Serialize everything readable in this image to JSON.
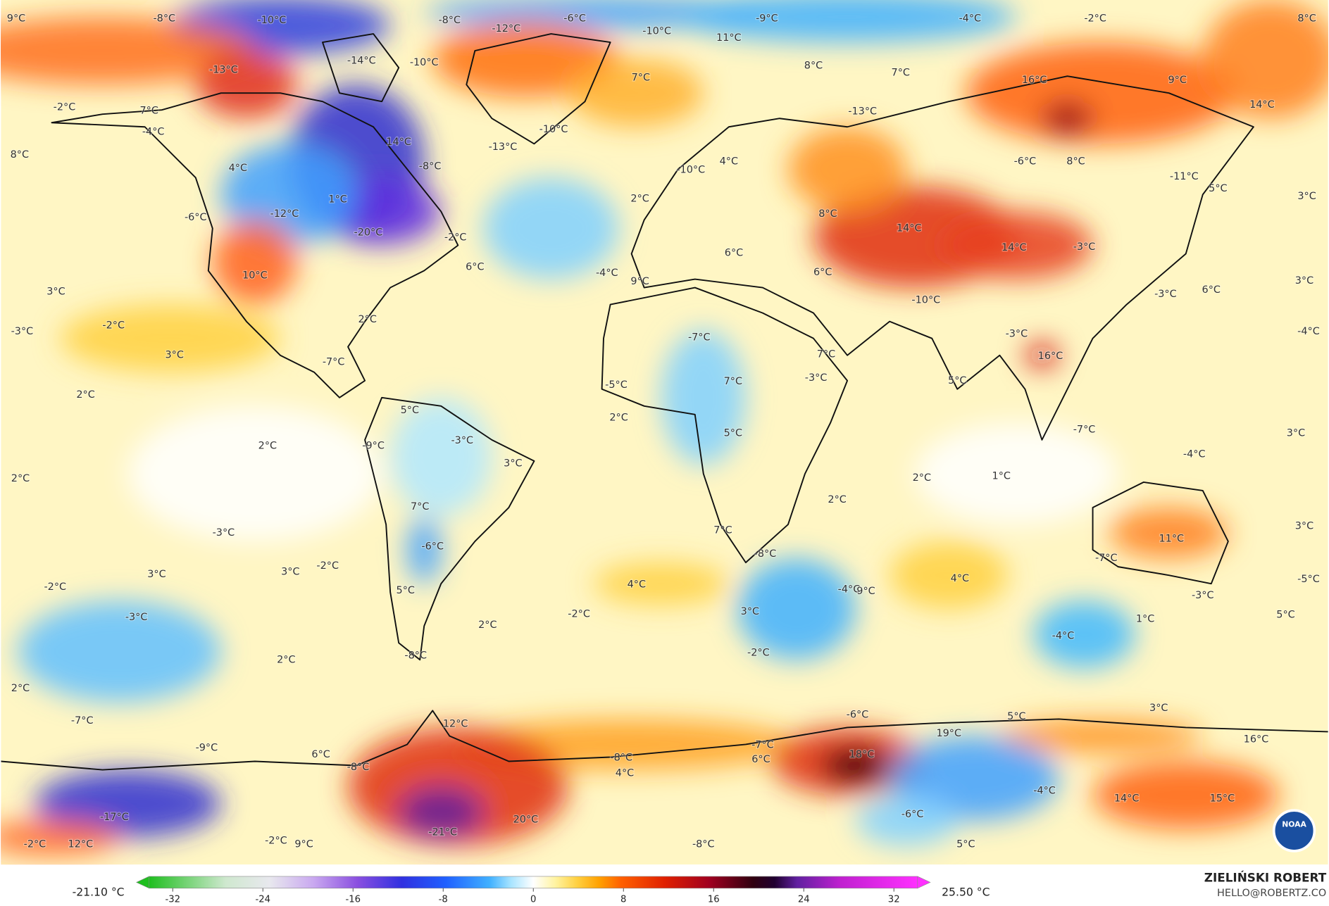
{
  "map": {
    "labels": [
      "9°C",
      "-8°C",
      "-10°C",
      "-8°C",
      "-6°C",
      "-10°C",
      "-9°C",
      "-4°C",
      "-2°C",
      "8°C",
      "-12°C",
      "11°C",
      "-14°C",
      "-10°C",
      "-13°C",
      "8°C",
      "7°C",
      "7°C",
      "16°C",
      "9°C",
      "14°C",
      "-2°C",
      "7°C",
      "-13°C",
      "-4°C",
      "-10°C",
      "14°C",
      "-13°C",
      "8°C",
      "4°C",
      "-6°C",
      "8°C",
      "4°C",
      "-8°C",
      "-10°C",
      "-11°C",
      "5°C",
      "3°C",
      "2°C",
      "1°C",
      "-6°C",
      "-12°C",
      "8°C",
      "-20°C",
      "-2°C",
      "14°C",
      "14°C",
      "-3°C",
      "6°C",
      "6°C",
      "10°C",
      "-4°C",
      "9°C",
      "6°C",
      "3°C",
      "6°C",
      "-10°C",
      "3°C",
      "-3°C",
      "2°C",
      "-3°C",
      "-2°C",
      "-4°C",
      "3°C",
      "-7°C",
      "-3°C",
      "7°C",
      "16°C",
      "-7°C",
      "-3°C",
      "5°C",
      "7°C",
      "2°C",
      "-5°C",
      "5°C",
      "2°C",
      "-7°C",
      "-3°C",
      "-9°C",
      "2°C",
      "3°C",
      "5°C",
      "-4°C",
      "3°C",
      "2°C",
      "2°C",
      "1°C",
      "2°C",
      "7°C",
      "7°C",
      "-3°C",
      "11°C",
      "3°C",
      "-6°C",
      "-8°C",
      "-7°C",
      "-2°C",
      "3°C",
      "3°C",
      "4°C",
      "-2°C",
      "4°C",
      "-4°C",
      "9°C",
      "5°C",
      "-5°C",
      "-3°C",
      "-2°C",
      "3°C",
      "5°C",
      "-3°C",
      "1°C",
      "-4°C",
      "2°C",
      "-8°C",
      "-2°C",
      "2°C",
      "2°C",
      "3°C",
      "-6°C",
      "5°C",
      "-7°C",
      "12°C",
      "19°C",
      "16°C",
      "-9°C",
      "-7°C",
      "18°C",
      "6°C",
      "6°C",
      "-8°C",
      "-8°C",
      "4°C",
      "-4°C",
      "14°C",
      "15°C",
      "20°C",
      "-17°C",
      "-6°C",
      "-21°C",
      "-2°C",
      "12°C",
      "-2°C",
      "9°C",
      "-8°C",
      "5°C"
    ]
  },
  "colorbar": {
    "min_label": "-21.10 °C",
    "max_label": "25.50 °C",
    "lim": [
      -35,
      35
    ],
    "ticks": [
      -32,
      -24,
      -16,
      -8,
      0,
      8,
      16,
      24,
      32
    ]
  },
  "credits": {
    "author": "ZIELIŃSKI ROBERT",
    "email": "HELLO@ROBERTZ.CO",
    "logo_text": "NOAA"
  }
}
